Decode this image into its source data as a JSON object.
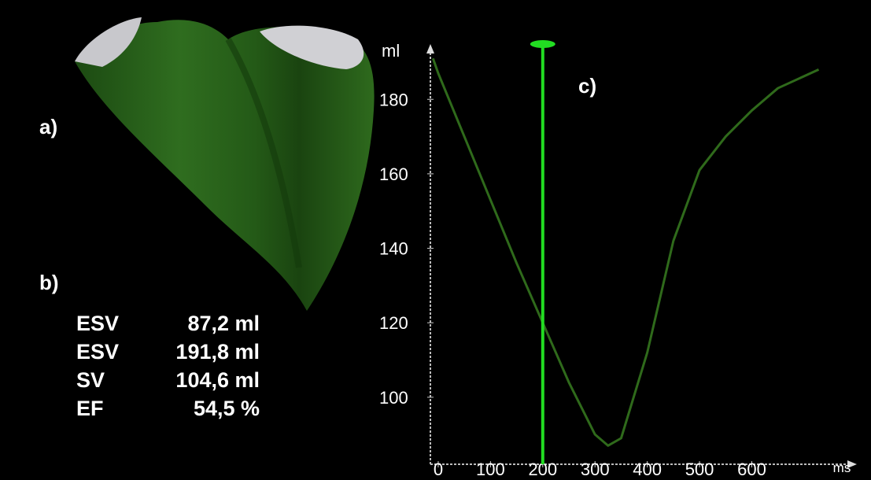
{
  "panel_labels": {
    "a": "a)",
    "b": "b)"
  },
  "stats": [
    {
      "name": "ESV",
      "value": "87,2 ml"
    },
    {
      "name": "ESV",
      "value": "191,8 ml"
    },
    {
      "name": "SV",
      "value": "104,6 ml"
    },
    {
      "name": "EF",
      "value": "54,5 %"
    }
  ],
  "chart_data": {
    "type": "line",
    "panel_label": "c)",
    "y_label": "ml",
    "x_label": "ms",
    "x": [
      -10,
      0,
      50,
      100,
      150,
      200,
      250,
      300,
      325,
      350,
      400,
      450,
      500,
      550,
      600,
      650,
      728
    ],
    "series": [
      {
        "color": "#2f6a1b",
        "values": [
          191,
          187,
          170,
          153,
          136,
          120,
          104,
          90,
          87,
          89,
          112,
          142,
          161,
          170,
          177,
          183,
          188
        ]
      }
    ],
    "cursor_x": 200,
    "cursor_color": "#22dd22",
    "xlim": [
      -15,
      795
    ],
    "ylim": [
      82,
      194
    ],
    "xticks": [
      0,
      100,
      200,
      300,
      400,
      500,
      600
    ],
    "yticks": [
      100,
      120,
      140,
      160,
      180
    ]
  }
}
